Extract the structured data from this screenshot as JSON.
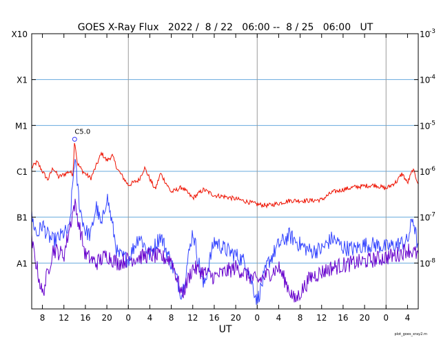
{
  "chart_data": {
    "type": "line",
    "title": "GOES X-Ray Flux   2022 /  8 / 22   06:00 --  8 / 25   06:00   UT",
    "xlabel": "UT",
    "x_range_hours_ut": [
      "2022-08-22 06:00",
      "2022-08-25 06:00"
    ],
    "x_tick_labels": [
      "8",
      "12",
      "16",
      "20",
      "0",
      "4",
      "8",
      "12",
      "16",
      "20",
      "0",
      "4",
      "8",
      "12",
      "16",
      "20",
      "0",
      "4"
    ],
    "day_boundaries": [
      "2022-08-23 00:00",
      "2022-08-24 00:00",
      "2022-08-25 00:00"
    ],
    "y_scale": "log",
    "ylim": [
      1e-09,
      0.001
    ],
    "left_axis_labels": [
      {
        "label": "X10",
        "value": 0.001
      },
      {
        "label": "X1",
        "value": 0.0001
      },
      {
        "label": "M1",
        "value": 1e-05
      },
      {
        "label": "C1",
        "value": 1e-06
      },
      {
        "label": "B1",
        "value": 1e-07
      },
      {
        "label": "A1",
        "value": 1e-08
      }
    ],
    "right_axis_labels": [
      {
        "base": "10",
        "exp": "-3",
        "value": 0.001
      },
      {
        "base": "10",
        "exp": "-4",
        "value": 0.0001
      },
      {
        "base": "10",
        "exp": "-5",
        "value": 1e-05
      },
      {
        "base": "10",
        "exp": "-6",
        "value": 1e-06
      },
      {
        "base": "10",
        "exp": "-7",
        "value": 1e-07
      },
      {
        "base": "10",
        "exp": "-8",
        "value": 1e-08
      }
    ],
    "grid": true,
    "annotation": {
      "text": "C5.0",
      "time": "2022-08-22 14:00",
      "value": 5e-06
    },
    "series": [
      {
        "color": "#ee1100",
        "times": [
          "2022-08-22 06:00",
          "2022-08-22 07:00",
          "2022-08-22 08:00",
          "2022-08-22 09:00",
          "2022-08-22 10:00",
          "2022-08-22 11:00",
          "2022-08-22 12:00",
          "2022-08-22 13:00",
          "2022-08-22 13:40",
          "2022-08-22 14:00",
          "2022-08-22 14:30",
          "2022-08-22 15:30",
          "2022-08-22 17:00",
          "2022-08-22 18:00",
          "2022-08-22 19:00",
          "2022-08-22 20:00",
          "2022-08-22 21:00",
          "2022-08-22 22:00",
          "2022-08-23 00:00",
          "2022-08-23 02:00",
          "2022-08-23 03:00",
          "2022-08-23 05:00",
          "2022-08-23 06:00",
          "2022-08-23 08:00",
          "2022-08-23 10:00",
          "2022-08-23 12:00",
          "2022-08-23 14:00",
          "2022-08-23 16:00",
          "2022-08-23 18:00",
          "2022-08-23 20:00",
          "2022-08-23 22:00",
          "2022-08-24 00:00",
          "2022-08-24 02:00",
          "2022-08-24 04:00",
          "2022-08-24 06:00",
          "2022-08-24 08:00",
          "2022-08-24 10:00",
          "2022-08-24 12:00",
          "2022-08-24 14:00",
          "2022-08-24 16:00",
          "2022-08-24 18:00",
          "2022-08-24 20:00",
          "2022-08-24 22:00",
          "2022-08-25 00:00",
          "2022-08-25 02:00",
          "2022-08-25 03:00",
          "2022-08-25 04:00",
          "2022-08-25 05:00",
          "2022-08-25 06:00"
        ],
        "values": [
          1.2e-06,
          1.6e-06,
          1e-06,
          6.5e-07,
          1.2e-06,
          7.5e-07,
          8.5e-07,
          1e-06,
          8.5e-07,
          5e-06,
          1.5e-06,
          1e-06,
          7e-07,
          1.3e-06,
          2.5e-06,
          1.7e-06,
          2.2e-06,
          1.1e-06,
          5e-07,
          6.5e-07,
          1.2e-06,
          4e-07,
          9e-07,
          3.5e-07,
          4.5e-07,
          2.6e-07,
          4e-07,
          3e-07,
          2.8e-07,
          2.5e-07,
          2.2e-07,
          1.9e-07,
          1.8e-07,
          2e-07,
          2.3e-07,
          2.3e-07,
          2.3e-07,
          2.4e-07,
          3.5e-07,
          4e-07,
          4.5e-07,
          4.8e-07,
          5e-07,
          4.2e-07,
          6e-07,
          9e-07,
          5.5e-07,
          1.1e-06,
          5.5e-07
        ]
      },
      {
        "color": "#3344ff",
        "times": [
          "2022-08-22 06:00",
          "2022-08-22 07:00",
          "2022-08-22 08:00",
          "2022-08-22 09:00",
          "2022-08-22 10:00",
          "2022-08-22 11:00",
          "2022-08-22 12:00",
          "2022-08-22 13:00",
          "2022-08-22 14:00",
          "2022-08-22 15:00",
          "2022-08-22 16:00",
          "2022-08-22 17:00",
          "2022-08-22 18:00",
          "2022-08-22 19:00",
          "2022-08-22 20:00",
          "2022-08-22 21:00",
          "2022-08-22 22:00",
          "2022-08-23 00:00",
          "2022-08-23 02:00",
          "2022-08-23 04:00",
          "2022-08-23 06:00",
          "2022-08-23 08:00",
          "2022-08-23 10:00",
          "2022-08-23 12:00",
          "2022-08-23 14:00",
          "2022-08-23 16:00",
          "2022-08-23 18:00",
          "2022-08-23 20:00",
          "2022-08-23 22:00",
          "2022-08-24 00:00",
          "2022-08-24 02:00",
          "2022-08-24 04:00",
          "2022-08-24 06:00",
          "2022-08-24 08:00",
          "2022-08-24 10:00",
          "2022-08-24 12:00",
          "2022-08-24 14:00",
          "2022-08-24 16:00",
          "2022-08-24 18:00",
          "2022-08-24 20:00",
          "2022-08-24 22:00",
          "2022-08-25 00:00",
          "2022-08-25 02:00",
          "2022-08-25 04:00",
          "2022-08-25 05:00",
          "2022-08-25 06:00"
        ],
        "values": [
          1e-07,
          4e-08,
          7e-08,
          4e-08,
          3e-08,
          3.5e-08,
          4.5e-08,
          5e-08,
          2e-06,
          1.5e-07,
          5e-08,
          4e-08,
          1.8e-07,
          6e-08,
          3e-07,
          7e-08,
          1.5e-08,
          1.2e-08,
          4e-08,
          1.5e-08,
          4e-08,
          1e-08,
          2e-09,
          5e-08,
          3e-09,
          3e-08,
          2e-08,
          1.5e-08,
          1e-08,
          1.5e-09,
          1e-08,
          2.5e-08,
          4e-08,
          2.5e-08,
          1.8e-08,
          2e-08,
          3.5e-08,
          2.2e-08,
          2e-08,
          2.5e-08,
          2.5e-08,
          2.2e-08,
          2.5e-08,
          3e-08,
          1e-07,
          2e-08
        ]
      },
      {
        "color": "#6600cc",
        "times": [
          "2022-08-22 06:00",
          "2022-08-22 08:00",
          "2022-08-22 10:00",
          "2022-08-22 12:00",
          "2022-08-22 14:00",
          "2022-08-22 16:00",
          "2022-08-22 18:00",
          "2022-08-22 20:00",
          "2022-08-22 22:00",
          "2022-08-23 00:00",
          "2022-08-23 04:00",
          "2022-08-23 08:00",
          "2022-08-23 10:00",
          "2022-08-23 12:00",
          "2022-08-23 16:00",
          "2022-08-23 20:00",
          "2022-08-24 00:00",
          "2022-08-24 04:00",
          "2022-08-24 07:00",
          "2022-08-24 10:00",
          "2022-08-24 14:00",
          "2022-08-24 18:00",
          "2022-08-24 22:00",
          "2022-08-25 02:00",
          "2022-08-25 04:00",
          "2022-08-25 06:00"
        ],
        "values": [
          3e-08,
          2e-09,
          2e-08,
          1.5e-08,
          2e-07,
          1.5e-08,
          1e-08,
          1.5e-08,
          1e-08,
          1.2e-08,
          1.5e-08,
          1.2e-08,
          2e-09,
          8e-09,
          5e-09,
          8e-09,
          4e-09,
          8e-09,
          1.5e-09,
          5e-09,
          8e-09,
          1e-08,
          1.2e-08,
          1.5e-08,
          2e-08,
          1.5e-08
        ]
      }
    ]
  },
  "footer_note": "plot_goes_xray2.rn"
}
